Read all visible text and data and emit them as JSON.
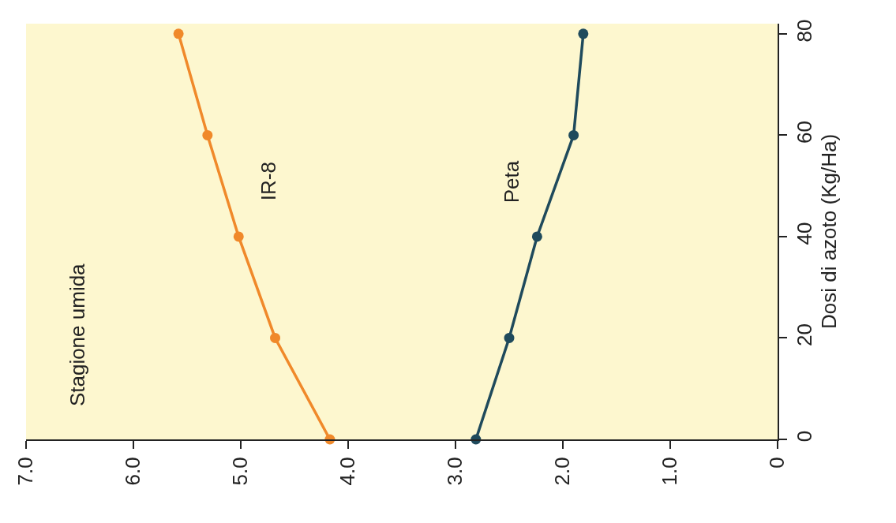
{
  "chart_data": {
    "type": "line",
    "ylabel": "Dosi di azoto (Kg/Ha)",
    "annotations": [
      "Stagione umida"
    ],
    "series": [
      {
        "name": "IR-8",
        "color": "#f0892a",
        "x": [
          4.17,
          4.68,
          5.02,
          5.31,
          5.58
        ],
        "values": [
          0,
          20,
          40,
          60,
          80
        ]
      },
      {
        "name": "Peta",
        "color": "#1f4a5c",
        "x": [
          2.81,
          2.5,
          2.24,
          1.9,
          1.81
        ],
        "values": [
          0,
          20,
          40,
          60,
          80
        ]
      }
    ],
    "xlim": [
      7.0,
      0
    ],
    "xticks": [
      {
        "value": 7,
        "label": "7.0"
      },
      {
        "value": 6,
        "label": "6.0"
      },
      {
        "value": 5,
        "label": "5.0"
      },
      {
        "value": 4,
        "label": "4.0"
      },
      {
        "value": 3,
        "label": "3.0"
      },
      {
        "value": 2,
        "label": "2.0"
      },
      {
        "value": 1,
        "label": "1.0"
      },
      0
    ],
    "ylim": [
      0,
      82
    ],
    "yticks": [
      0,
      20,
      40,
      60,
      80
    ],
    "grid": false,
    "legend": false,
    "marker": "circle",
    "line_style": "solid"
  }
}
